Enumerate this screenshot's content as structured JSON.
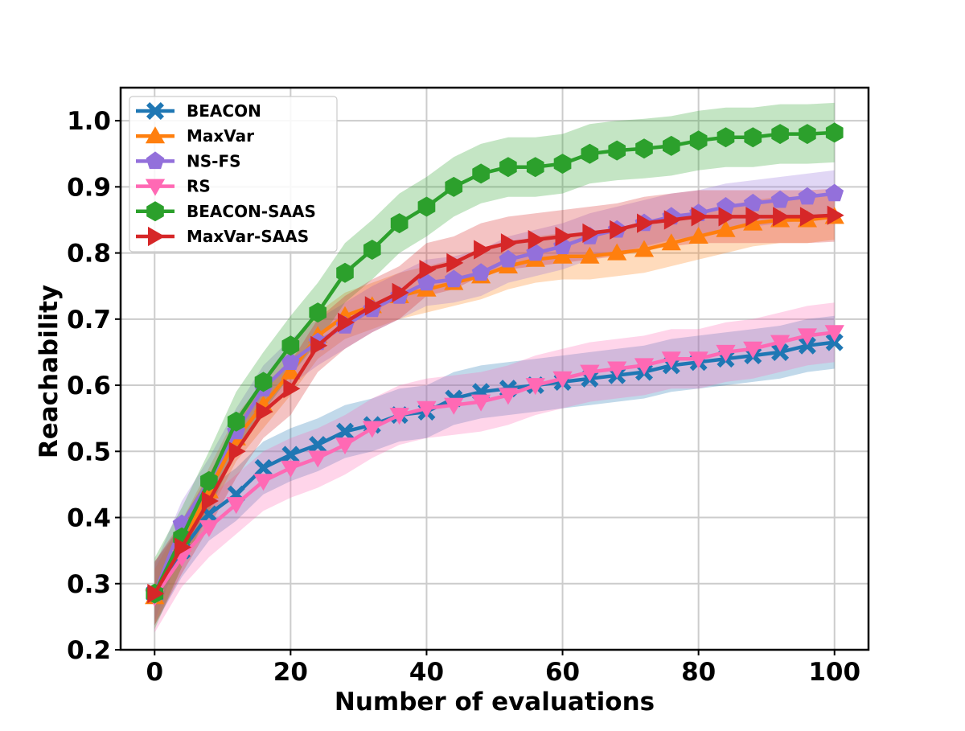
{
  "chart_data": {
    "type": "line",
    "title": "",
    "xlabel": "Number of evaluations",
    "ylabel": "Reachability",
    "xlim": [
      -5,
      105
    ],
    "ylim": [
      0.2,
      1.05
    ],
    "xticks": [
      "0",
      "20",
      "40",
      "60",
      "80",
      "100"
    ],
    "yticks": [
      "0.2",
      "0.3",
      "0.4",
      "0.5",
      "0.6",
      "0.7",
      "0.8",
      "0.9",
      "1.0"
    ],
    "grid": true,
    "legend_position": "top-left",
    "x": [
      0,
      4,
      8,
      12,
      16,
      20,
      24,
      28,
      32,
      36,
      40,
      44,
      48,
      52,
      56,
      60,
      64,
      68,
      72,
      76,
      80,
      84,
      88,
      92,
      96,
      100
    ],
    "series": [
      {
        "name": "BEACON",
        "color": "#1f77b4",
        "marker": "x",
        "values": [
          0.285,
          0.35,
          0.405,
          0.435,
          0.475,
          0.495,
          0.51,
          0.53,
          0.54,
          0.555,
          0.56,
          0.58,
          0.59,
          0.595,
          0.6,
          0.605,
          0.61,
          0.615,
          0.62,
          0.63,
          0.635,
          0.64,
          0.645,
          0.65,
          0.66,
          0.665
        ],
        "band": 0.04
      },
      {
        "name": "MaxVar",
        "color": "#ff7f0e",
        "marker": "triangle-up",
        "values": [
          0.28,
          0.36,
          0.44,
          0.52,
          0.57,
          0.62,
          0.675,
          0.705,
          0.72,
          0.735,
          0.745,
          0.755,
          0.765,
          0.78,
          0.79,
          0.795,
          0.795,
          0.8,
          0.805,
          0.815,
          0.825,
          0.835,
          0.845,
          0.85,
          0.85,
          0.855
        ],
        "band": 0.035
      },
      {
        "name": "NS-FS",
        "color": "#9370db",
        "marker": "pentagon",
        "values": [
          0.285,
          0.39,
          0.455,
          0.53,
          0.595,
          0.635,
          0.665,
          0.69,
          0.715,
          0.735,
          0.755,
          0.76,
          0.77,
          0.79,
          0.8,
          0.81,
          0.825,
          0.835,
          0.845,
          0.855,
          0.86,
          0.87,
          0.875,
          0.88,
          0.885,
          0.89
        ],
        "band": 0.035
      },
      {
        "name": "RS",
        "color": "#ff69b4",
        "marker": "triangle-down",
        "values": [
          0.28,
          0.34,
          0.385,
          0.42,
          0.455,
          0.475,
          0.49,
          0.51,
          0.535,
          0.555,
          0.565,
          0.57,
          0.575,
          0.585,
          0.6,
          0.61,
          0.62,
          0.625,
          0.63,
          0.64,
          0.64,
          0.65,
          0.655,
          0.665,
          0.675,
          0.68
        ],
        "band": 0.045
      },
      {
        "name": "BEACON-SAAS",
        "color": "#2ca02c",
        "marker": "hexagon",
        "values": [
          0.285,
          0.37,
          0.455,
          0.545,
          0.605,
          0.66,
          0.71,
          0.77,
          0.805,
          0.845,
          0.87,
          0.9,
          0.92,
          0.93,
          0.93,
          0.935,
          0.95,
          0.955,
          0.958,
          0.962,
          0.97,
          0.975,
          0.975,
          0.98,
          0.98,
          0.982
        ],
        "band": 0.045
      },
      {
        "name": "MaxVar-SAAS",
        "color": "#d62728",
        "marker": "triangle-right",
        "values": [
          0.285,
          0.355,
          0.425,
          0.5,
          0.56,
          0.595,
          0.66,
          0.695,
          0.72,
          0.74,
          0.775,
          0.785,
          0.805,
          0.815,
          0.82,
          0.825,
          0.83,
          0.835,
          0.845,
          0.85,
          0.855,
          0.855,
          0.855,
          0.855,
          0.855,
          0.857
        ],
        "band": 0.04
      }
    ]
  }
}
